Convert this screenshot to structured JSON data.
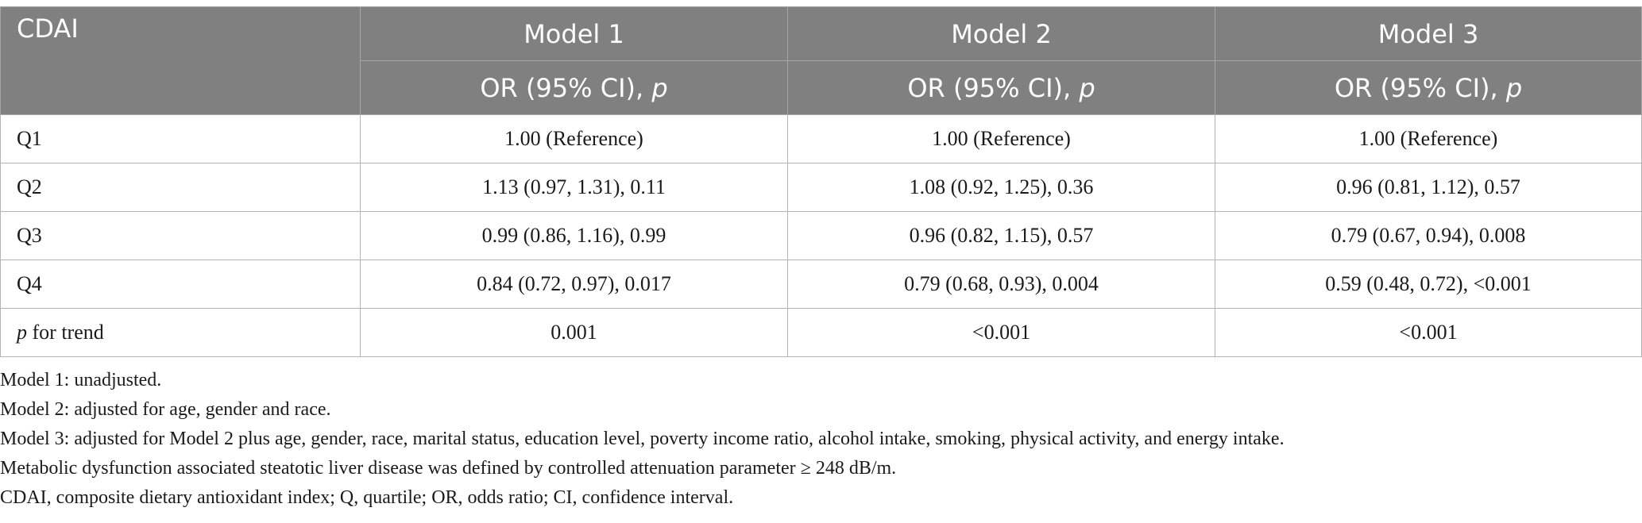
{
  "table": {
    "header": {
      "row_label": "CDAI",
      "models": [
        "Model 1",
        "Model 2",
        "Model 3"
      ],
      "metric_text": "OR (95% CI), ",
      "metric_p": "p"
    },
    "rows": [
      {
        "label": "Q1",
        "values": [
          "1.00 (Reference)",
          "1.00 (Reference)",
          "1.00 (Reference)"
        ]
      },
      {
        "label": "Q2",
        "values": [
          "1.13 (0.97, 1.31), 0.11",
          "1.08 (0.92, 1.25), 0.36",
          "0.96 (0.81, 1.12), 0.57"
        ]
      },
      {
        "label": "Q3",
        "values": [
          "0.99 (0.86, 1.16), 0.99",
          "0.96 (0.82, 1.15), 0.57",
          "0.79 (0.67, 0.94), 0.008"
        ]
      },
      {
        "label": "Q4",
        "values": [
          "0.84 (0.72, 0.97), 0.017",
          "0.79 (0.68, 0.93), 0.004",
          "0.59 (0.48, 0.72), <0.001"
        ]
      }
    ],
    "trend_row": {
      "label_italic": "p",
      "label_rest": " for trend",
      "values": [
        "0.001",
        "<0.001",
        "<0.001"
      ]
    }
  },
  "footnotes": [
    "Model 1: unadjusted.",
    "Model 2: adjusted for age, gender and race.",
    "Model 3: adjusted for Model 2 plus age, gender, race, marital status, education level, poverty income ratio, alcohol intake, smoking, physical activity, and energy intake.",
    "Metabolic dysfunction associated steatotic liver disease was defined by controlled attenuation parameter ≥ 248 dB/m.",
    "CDAI, composite dietary antioxidant index; Q, quartile; OR, odds ratio; CI, confidence interval."
  ]
}
